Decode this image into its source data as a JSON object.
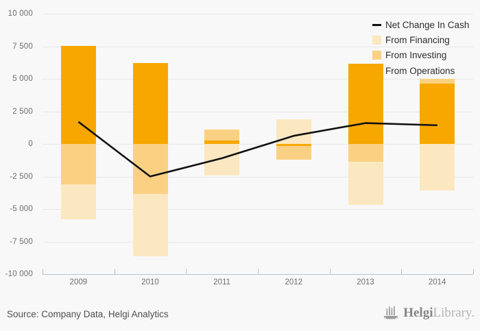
{
  "chart_data": {
    "type": "bar",
    "subtype": "stacked-bar-with-line",
    "title": "",
    "categories": [
      "2009",
      "2010",
      "2011",
      "2012",
      "2013",
      "2014"
    ],
    "series": [
      {
        "name": "From Operations",
        "type": "bar",
        "color": "#F8A700",
        "values": [
          7550,
          6200,
          250,
          -150,
          6150,
          4650
        ]
      },
      {
        "name": "From Investing",
        "type": "bar",
        "color": "#FAD183",
        "values": [
          -3100,
          -3840,
          850,
          -1050,
          -1370,
          330
        ]
      },
      {
        "name": "From Financing",
        "type": "bar",
        "color": "#FBE8C1",
        "values": [
          -2700,
          -4800,
          -2400,
          1870,
          -3300,
          -3600
        ]
      },
      {
        "name": "Net Change In Cash",
        "type": "line",
        "color": "#111111",
        "values": [
          1700,
          -2500,
          -1100,
          620,
          1600,
          1430
        ]
      }
    ],
    "ylim": [
      -10000,
      10000
    ],
    "y_ticks": [
      10000,
      7500,
      5000,
      2500,
      0,
      -2500,
      -5000,
      -7500,
      -10000
    ],
    "y_tick_labels": [
      "10 000",
      "7 500",
      "5 000",
      "2 500",
      "0",
      "-2 500",
      "-5 000",
      "-7 500",
      "-10 000"
    ],
    "grid": true,
    "legend_position": "top-right"
  },
  "legend": {
    "items": [
      {
        "label": "Net Change In Cash",
        "swatch": "line",
        "color": "#111111"
      },
      {
        "label": "From Financing",
        "swatch": "square",
        "color": "#FBE8C1"
      },
      {
        "label": "From Investing",
        "swatch": "square",
        "color": "#FAD183"
      },
      {
        "label": "From Operations",
        "swatch": "square",
        "color": "#F8A700"
      }
    ]
  },
  "footer": {
    "source": "Source: Company Data, Helgi Analytics",
    "logo": {
      "icon": "ship-bars-icon",
      "text_primary": "Helgi",
      "text_secondary": "Library."
    }
  },
  "colors": {
    "background": "#f8f8f8",
    "gridline": "#e7e7e7",
    "axis_line": "#b9c4ce",
    "tick_text": "#6e6e6e",
    "line_series": "#111111"
  }
}
